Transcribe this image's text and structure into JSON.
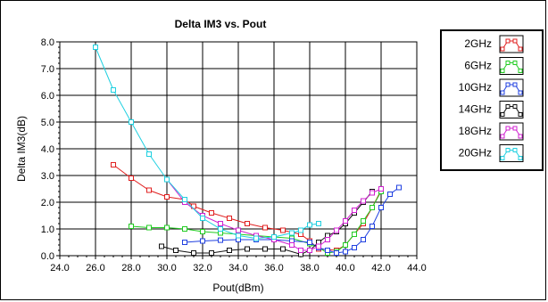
{
  "chart_data": {
    "type": "line",
    "title": "Delta IM3 vs. Pout",
    "xlabel": "Pout(dBm)",
    "ylabel": "Delta IM3(dB)",
    "xlim": [
      24.0,
      44.0
    ],
    "ylim": [
      0.0,
      8.0
    ],
    "x_ticks": [
      "24.0",
      "26.0",
      "28.0",
      "30.0",
      "32.0",
      "34.0",
      "36.0",
      "38.0",
      "40.0",
      "42.0",
      "44.0"
    ],
    "y_ticks": [
      "0.0",
      "1.0",
      "2.0",
      "3.0",
      "4.0",
      "5.0",
      "6.0",
      "7.0",
      "8.0"
    ],
    "grid": true,
    "legend_position": "right",
    "series": [
      {
        "name": "2GHz",
        "color": "#e02020",
        "points": [
          [
            27.0,
            3.4
          ],
          [
            28.0,
            2.9
          ],
          [
            29.0,
            2.45
          ],
          [
            30.0,
            2.2
          ],
          [
            31.0,
            2.1
          ],
          [
            31.5,
            1.85
          ],
          [
            32.5,
            1.6
          ],
          [
            33.5,
            1.4
          ],
          [
            34.5,
            1.2
          ],
          [
            35.5,
            1.05
          ],
          [
            36.5,
            0.95
          ],
          [
            37.5,
            0.8
          ],
          [
            38.0,
            0.55
          ],
          [
            38.5,
            0.25
          ],
          [
            39.5,
            0.2
          ],
          [
            40.0,
            0.4
          ],
          [
            40.5,
            0.8
          ],
          [
            41.0,
            1.2
          ],
          [
            41.5,
            1.8
          ],
          [
            42.0,
            2.45
          ]
        ]
      },
      {
        "name": "6GHz",
        "color": "#22cc22",
        "points": [
          [
            28.0,
            1.1
          ],
          [
            29.0,
            1.05
          ],
          [
            30.0,
            1.05
          ],
          [
            31.0,
            1.0
          ],
          [
            32.0,
            0.9
          ],
          [
            33.0,
            0.85
          ],
          [
            34.0,
            0.8
          ],
          [
            35.0,
            0.75
          ],
          [
            36.0,
            0.7
          ],
          [
            37.0,
            0.65
          ],
          [
            38.0,
            0.45
          ],
          [
            38.5,
            0.3
          ],
          [
            39.0,
            0.1
          ],
          [
            39.5,
            0.15
          ],
          [
            40.0,
            0.4
          ],
          [
            40.5,
            0.8
          ],
          [
            41.0,
            1.3
          ],
          [
            41.5,
            1.8
          ],
          [
            42.0,
            2.4
          ]
        ]
      },
      {
        "name": "10GHz",
        "color": "#2040e0",
        "points": [
          [
            31.0,
            0.5
          ],
          [
            32.0,
            0.55
          ],
          [
            33.0,
            0.58
          ],
          [
            34.0,
            0.6
          ],
          [
            35.0,
            0.6
          ],
          [
            36.0,
            0.6
          ],
          [
            37.0,
            0.55
          ],
          [
            38.0,
            0.5
          ],
          [
            38.5,
            0.3
          ],
          [
            39.0,
            0.2
          ],
          [
            39.5,
            0.1
          ],
          [
            40.0,
            0.15
          ],
          [
            40.5,
            0.3
          ],
          [
            41.0,
            0.6
          ],
          [
            41.5,
            1.1
          ],
          [
            42.0,
            1.8
          ],
          [
            42.5,
            2.3
          ],
          [
            43.0,
            2.55
          ]
        ]
      },
      {
        "name": "14GHz",
        "color": "#111111",
        "points": [
          [
            29.7,
            0.35
          ],
          [
            30.5,
            0.2
          ],
          [
            31.5,
            0.1
          ],
          [
            32.5,
            0.1
          ],
          [
            33.5,
            0.2
          ],
          [
            34.5,
            0.25
          ],
          [
            35.5,
            0.25
          ],
          [
            36.5,
            0.25
          ],
          [
            37.5,
            0.05
          ],
          [
            38.0,
            0.2
          ],
          [
            38.5,
            0.5
          ],
          [
            39.0,
            0.75
          ],
          [
            39.5,
            0.9
          ],
          [
            40.0,
            1.2
          ],
          [
            40.5,
            1.6
          ],
          [
            41.0,
            2.0
          ],
          [
            41.5,
            2.4
          ]
        ]
      },
      {
        "name": "18GHz",
        "color": "#d020d0",
        "points": [
          [
            30.0,
            2.85
          ],
          [
            31.0,
            2.0
          ],
          [
            32.0,
            1.5
          ],
          [
            33.0,
            1.2
          ],
          [
            34.0,
            0.95
          ],
          [
            35.0,
            0.75
          ],
          [
            36.0,
            0.6
          ],
          [
            37.0,
            0.4
          ],
          [
            37.5,
            0.2
          ],
          [
            38.0,
            0.2
          ],
          [
            38.5,
            0.35
          ],
          [
            39.0,
            0.6
          ],
          [
            39.5,
            0.95
          ],
          [
            40.0,
            1.3
          ],
          [
            40.5,
            1.7
          ],
          [
            41.0,
            2.05
          ],
          [
            41.5,
            2.35
          ],
          [
            42.0,
            2.5
          ]
        ]
      },
      {
        "name": "20GHz",
        "color": "#20d0e0",
        "points": [
          [
            26.0,
            7.8
          ],
          [
            27.0,
            6.2
          ],
          [
            28.0,
            5.0
          ],
          [
            29.0,
            3.8
          ],
          [
            30.0,
            2.85
          ],
          [
            31.0,
            2.1
          ],
          [
            32.0,
            1.4
          ],
          [
            33.0,
            1.0
          ],
          [
            34.0,
            0.75
          ],
          [
            35.0,
            0.65
          ],
          [
            36.0,
            0.7
          ],
          [
            37.0,
            0.85
          ],
          [
            37.5,
            0.95
          ],
          [
            38.0,
            1.15
          ],
          [
            38.5,
            1.2
          ]
        ]
      }
    ]
  }
}
